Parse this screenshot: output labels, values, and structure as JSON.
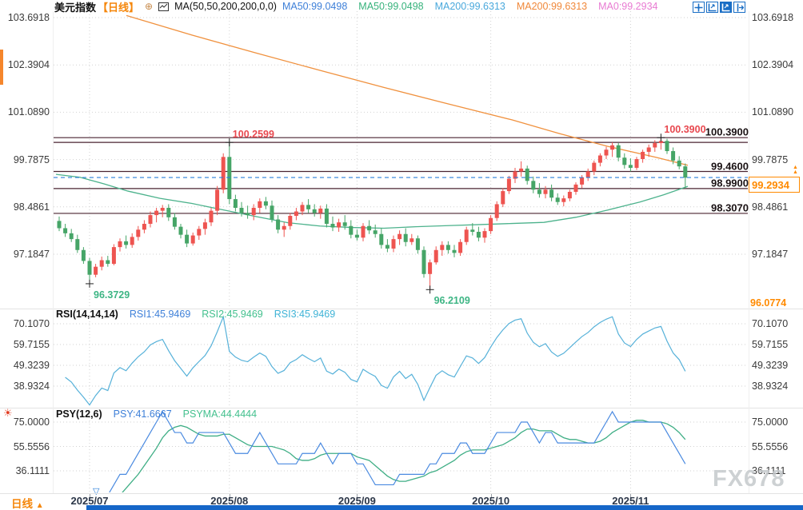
{
  "header": {
    "title": "美元指数",
    "timeframe": "【日线】",
    "plus_icon": "⊕",
    "ma_formula": "MA(50,50,200,200,0,0)",
    "ma_items": [
      {
        "label": "MA50:99.0498",
        "color": "#3d7fd8"
      },
      {
        "label": "MA50:99.0498",
        "color": "#36b27b"
      },
      {
        "label": "MA200:99.6313",
        "color": "#49a8dc"
      },
      {
        "label": "MA200:99.6313",
        "color": "#f0883a"
      },
      {
        "label": "MA0:99.2934",
        "color": "#e87ad2"
      }
    ]
  },
  "toolbar": {
    "icons": [
      "pan-crosshair-icon",
      "axis-zoom-icon",
      "axis-scale-icon",
      "exit-fullscreen-icon"
    ]
  },
  "rsi_panel": {
    "name": "RSI(14,14,14)",
    "items": [
      {
        "label": "RSI1:45.9469",
        "color": "#3d7fd8"
      },
      {
        "label": "RSI2:45.9469",
        "color": "#43c08e"
      },
      {
        "label": "RSI3:45.9469",
        "color": "#3fb3d6"
      }
    ],
    "ticks": [
      "70.1070",
      "59.7155",
      "49.3239",
      "38.9324"
    ]
  },
  "psy_panel": {
    "name": "PSY(12,6)",
    "items": [
      {
        "label": "PSY:41.6667",
        "color": "#3d7fd8"
      },
      {
        "label": "PSYMA:44.4444",
        "color": "#43c08e"
      }
    ],
    "ticks": [
      "75.0000",
      "55.5556",
      "36.1111"
    ]
  },
  "footer": {
    "timeframe": "日线",
    "arrow": "▲"
  },
  "watermark": "FX678",
  "colors": {
    "up": "#ee5450",
    "down": "#46a567",
    "ma50": "#4cb28c",
    "ma200": "#f0913e",
    "current_line": "#2b7fd9",
    "level_line": "#4a2430",
    "grid": "#d2d2d2",
    "rsi_line": "#56b1d9",
    "psy_line": "#4a8ae0",
    "psyma_line": "#3fae85",
    "red_label": "#e8484f",
    "green_label": "#3db584",
    "scrollbar": "#1566c8",
    "icon_blue": "#1a6ec5",
    "marker": "#222222"
  },
  "chart_data": {
    "type": "candlestick",
    "symbol": "美元指数",
    "interval": "日线",
    "price_ticks": [
      "103.6918",
      "102.3904",
      "101.0890",
      "99.7875",
      "98.4861",
      "97.1847"
    ],
    "pane_min_label": "96.0774",
    "current_price": 99.2934,
    "current_price_label": "99.2934",
    "levels": [
      {
        "price": 100.39,
        "label": "100.3900"
      },
      {
        "price": 100.2599,
        "label": null
      },
      {
        "price": 99.46,
        "label": "99.4600"
      },
      {
        "price": 98.99,
        "label": "98.9900"
      },
      {
        "price": 98.307,
        "label": "98.3070"
      }
    ],
    "swings": [
      {
        "text": "96.3729",
        "candle": 5,
        "price": 96.3729,
        "side": "below",
        "color": "#3db584"
      },
      {
        "text": "96.2109",
        "candle": 61,
        "price": 96.2109,
        "side": "below",
        "color": "#3db584"
      },
      {
        "text": "100.2599",
        "candle": 28,
        "price": 100.2599,
        "side": "above",
        "color": "#e8484f"
      },
      {
        "text": "100.3900",
        "candle": 99,
        "price": 100.39,
        "side": "above",
        "color": "#e8484f"
      }
    ],
    "months": [
      {
        "label": "2025/07",
        "candle": 5
      },
      {
        "label": "2025/08",
        "candle": 28
      },
      {
        "label": "2025/09",
        "candle": 49
      },
      {
        "label": "2025/10",
        "candle": 71
      },
      {
        "label": "2025/11",
        "candle": 94
      }
    ],
    "ma50_points": [
      [
        70,
        99.38
      ],
      [
        100,
        99.3
      ],
      [
        130,
        99.12
      ],
      [
        160,
        98.92
      ],
      [
        200,
        98.72
      ],
      [
        240,
        98.58
      ],
      [
        280,
        98.4
      ],
      [
        320,
        98.22
      ],
      [
        360,
        98.05
      ],
      [
        400,
        97.96
      ],
      [
        440,
        97.92
      ],
      [
        480,
        97.9
      ],
      [
        520,
        97.94
      ],
      [
        560,
        97.97
      ],
      [
        600,
        98.0
      ],
      [
        640,
        98.03
      ],
      [
        680,
        98.06
      ],
      [
        720,
        98.2
      ],
      [
        760,
        98.4
      ],
      [
        800,
        98.62
      ],
      [
        830,
        98.82
      ],
      [
        860,
        99.05
      ]
    ],
    "ma200_points": [
      [
        158,
        103.75
      ],
      [
        240,
        103.21
      ],
      [
        320,
        102.72
      ],
      [
        400,
        102.24
      ],
      [
        480,
        101.77
      ],
      [
        560,
        101.32
      ],
      [
        640,
        100.88
      ],
      [
        700,
        100.5
      ],
      [
        760,
        100.15
      ],
      [
        820,
        99.85
      ],
      [
        860,
        99.63
      ]
    ],
    "candles": [
      [
        98.1,
        98.22,
        97.82,
        97.9
      ],
      [
        97.9,
        98.02,
        97.66,
        97.76
      ],
      [
        97.76,
        97.88,
        97.52,
        97.6
      ],
      [
        97.6,
        97.72,
        97.22,
        97.3
      ],
      [
        97.3,
        97.38,
        96.92,
        97.0
      ],
      [
        97.0,
        97.08,
        96.37,
        96.62
      ],
      [
        96.62,
        96.92,
        96.55,
        96.84
      ],
      [
        96.84,
        97.12,
        96.74,
        97.02
      ],
      [
        97.02,
        97.14,
        96.84,
        96.92
      ],
      [
        96.92,
        97.46,
        96.88,
        97.38
      ],
      [
        97.38,
        97.62,
        97.26,
        97.54
      ],
      [
        97.54,
        97.7,
        97.34,
        97.44
      ],
      [
        97.44,
        97.76,
        97.36,
        97.66
      ],
      [
        97.66,
        97.96,
        97.56,
        97.86
      ],
      [
        97.86,
        98.12,
        97.76,
        98.02
      ],
      [
        98.02,
        98.36,
        97.92,
        98.26
      ],
      [
        98.26,
        98.46,
        98.06,
        98.38
      ],
      [
        98.38,
        98.54,
        98.2,
        98.46
      ],
      [
        98.46,
        98.56,
        98.1,
        98.2
      ],
      [
        98.2,
        98.32,
        97.86,
        97.94
      ],
      [
        97.94,
        98.02,
        97.62,
        97.72
      ],
      [
        97.72,
        97.86,
        97.38,
        97.48
      ],
      [
        97.48,
        97.78,
        97.42,
        97.7
      ],
      [
        97.7,
        97.96,
        97.58,
        97.88
      ],
      [
        97.88,
        98.16,
        97.72,
        98.06
      ],
      [
        98.06,
        98.46,
        97.96,
        98.38
      ],
      [
        98.38,
        99.06,
        98.26,
        98.96
      ],
      [
        98.96,
        99.96,
        98.86,
        99.86
      ],
      [
        99.86,
        100.26,
        98.56,
        98.7
      ],
      [
        98.7,
        98.82,
        98.36,
        98.46
      ],
      [
        98.46,
        98.62,
        98.22,
        98.32
      ],
      [
        98.32,
        98.52,
        98.16,
        98.26
      ],
      [
        98.26,
        98.56,
        98.12,
        98.46
      ],
      [
        98.46,
        98.72,
        98.32,
        98.64
      ],
      [
        98.64,
        98.76,
        98.42,
        98.52
      ],
      [
        98.52,
        98.66,
        98.06,
        98.14
      ],
      [
        98.14,
        98.26,
        97.76,
        97.86
      ],
      [
        97.86,
        98.06,
        97.66,
        97.96
      ],
      [
        97.96,
        98.32,
        97.86,
        98.24
      ],
      [
        98.24,
        98.46,
        98.12,
        98.36
      ],
      [
        98.36,
        98.62,
        98.26,
        98.54
      ],
      [
        98.54,
        98.7,
        98.32,
        98.42
      ],
      [
        98.42,
        98.56,
        98.22,
        98.32
      ],
      [
        98.32,
        98.52,
        98.16,
        98.44
      ],
      [
        98.44,
        98.56,
        97.92,
        98.02
      ],
      [
        98.02,
        98.22,
        97.82,
        97.92
      ],
      [
        97.92,
        98.16,
        97.8,
        98.06
      ],
      [
        98.06,
        98.26,
        97.86,
        97.96
      ],
      [
        97.96,
        98.12,
        97.62,
        97.72
      ],
      [
        97.72,
        97.86,
        97.56,
        97.64
      ],
      [
        97.64,
        98.04,
        97.54,
        97.96
      ],
      [
        97.96,
        98.12,
        97.74,
        97.84
      ],
      [
        97.84,
        98.0,
        97.64,
        97.74
      ],
      [
        97.74,
        97.9,
        97.34,
        97.44
      ],
      [
        97.44,
        97.6,
        97.24,
        97.34
      ],
      [
        97.34,
        97.7,
        97.24,
        97.6
      ],
      [
        97.6,
        97.84,
        97.44,
        97.74
      ],
      [
        97.74,
        97.9,
        97.4,
        97.52
      ],
      [
        97.52,
        97.74,
        97.44,
        97.62
      ],
      [
        97.62,
        97.7,
        97.2,
        97.3
      ],
      [
        97.3,
        97.4,
        96.54,
        96.64
      ],
      [
        96.64,
        97.04,
        96.21,
        96.96
      ],
      [
        96.96,
        97.4,
        96.9,
        97.3
      ],
      [
        97.3,
        97.54,
        97.14,
        97.44
      ],
      [
        97.44,
        97.54,
        97.2,
        97.3
      ],
      [
        97.3,
        97.44,
        97.1,
        97.22
      ],
      [
        97.22,
        97.6,
        97.14,
        97.52
      ],
      [
        97.52,
        97.94,
        97.44,
        97.86
      ],
      [
        97.86,
        98.04,
        97.7,
        97.8
      ],
      [
        97.8,
        97.94,
        97.54,
        97.64
      ],
      [
        97.64,
        97.9,
        97.5,
        97.82
      ],
      [
        97.82,
        98.26,
        97.74,
        98.18
      ],
      [
        98.18,
        98.64,
        98.1,
        98.56
      ],
      [
        98.56,
        99.0,
        98.48,
        98.92
      ],
      [
        98.92,
        99.34,
        98.84,
        99.26
      ],
      [
        99.26,
        99.56,
        99.14,
        99.46
      ],
      [
        99.46,
        99.74,
        99.32,
        99.54
      ],
      [
        99.54,
        99.62,
        99.1,
        99.2
      ],
      [
        99.2,
        99.32,
        98.86,
        98.96
      ],
      [
        98.96,
        99.14,
        98.74,
        98.84
      ],
      [
        98.84,
        99.06,
        98.72,
        98.96
      ],
      [
        98.96,
        99.1,
        98.64,
        98.74
      ],
      [
        98.74,
        98.86,
        98.54,
        98.62
      ],
      [
        98.62,
        98.8,
        98.5,
        98.72
      ],
      [
        98.72,
        98.96,
        98.64,
        98.9
      ],
      [
        98.9,
        99.16,
        98.82,
        99.1
      ],
      [
        99.1,
        99.36,
        99.0,
        99.3
      ],
      [
        99.3,
        99.54,
        99.2,
        99.46
      ],
      [
        99.46,
        99.76,
        99.36,
        99.7
      ],
      [
        99.7,
        99.96,
        99.6,
        99.9
      ],
      [
        99.9,
        100.14,
        99.8,
        100.06
      ],
      [
        100.06,
        100.26,
        99.86,
        100.18
      ],
      [
        100.18,
        100.24,
        99.74,
        99.84
      ],
      [
        99.84,
        99.96,
        99.54,
        99.64
      ],
      [
        99.64,
        99.82,
        99.46,
        99.56
      ],
      [
        99.56,
        99.86,
        99.5,
        99.8
      ],
      [
        99.8,
        100.06,
        99.7,
        100.0
      ],
      [
        100.0,
        100.2,
        99.86,
        100.12
      ],
      [
        100.12,
        100.32,
        100.0,
        100.24
      ],
      [
        100.24,
        100.39,
        100.06,
        100.3
      ],
      [
        100.3,
        100.36,
        99.94,
        100.02
      ],
      [
        100.02,
        100.12,
        99.66,
        99.76
      ],
      [
        99.76,
        99.88,
        99.52,
        99.6
      ],
      [
        99.6,
        99.68,
        98.99,
        99.29
      ]
    ]
  }
}
